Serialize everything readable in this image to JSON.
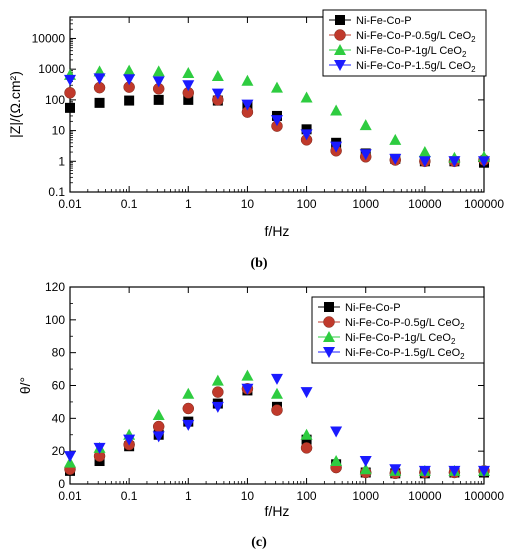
{
  "chart_data": [
    {
      "type": "scatter",
      "panel_label": "(b)",
      "xlabel": "f/Hz",
      "ylabel": "|Z|/(Ω.cm²)",
      "x_scale": "log",
      "y_scale": "log",
      "xlim": [
        0.01,
        100000
      ],
      "ylim": [
        0.1,
        50000
      ],
      "x_ticks": [
        "0.01",
        "0.1",
        "1",
        "10",
        "100",
        "1000",
        "10000",
        "100000"
      ],
      "y_ticks": [
        "0.1",
        "1",
        "10",
        "100",
        "1000",
        "10000"
      ],
      "legend_position": "top-right",
      "grid": false,
      "x": [
        0.01,
        0.0316,
        0.1,
        0.316,
        1,
        3.16,
        10,
        31.6,
        100,
        316,
        1000,
        3160,
        10000,
        31600,
        100000
      ],
      "series": [
        {
          "name": "Ni-Fe-Co-P",
          "label_parts": [
            "Ni-Fe-Co-P",
            ""
          ],
          "marker": "square",
          "color": "#000000",
          "values": [
            55,
            80,
            95,
            100,
            100,
            95,
            65,
            30,
            11,
            4,
            1.8,
            1.2,
            1.0,
            1.0,
            0.9
          ]
        },
        {
          "name": "Ni-Fe-Co-P-0.5g/L CeO2",
          "label_parts": [
            "Ni-Fe-Co-P-0.5g/L CeO",
            "2"
          ],
          "marker": "circle",
          "color": "#c0392b",
          "values": [
            170,
            250,
            260,
            230,
            170,
            100,
            40,
            14,
            5,
            2.2,
            1.4,
            1.1,
            1.0,
            1.0,
            1.1
          ]
        },
        {
          "name": "Ni-Fe-Co-P-1g/L CeO2",
          "label_parts": [
            "Ni-Fe-Co-P-1g/L CeO",
            "2"
          ],
          "marker": "triangle-up",
          "color": "#2ecc40",
          "values": [
            650,
            850,
            900,
            850,
            750,
            600,
            420,
            250,
            120,
            45,
            15,
            5,
            2,
            1.3,
            1.4
          ]
        },
        {
          "name": "Ni-Fe-Co-P-1.5g/L CeO2",
          "label_parts": [
            "Ni-Fe-Co-P-1.5g/L CeO",
            "2"
          ],
          "marker": "triangle-down",
          "color": "#1a1aff",
          "values": [
            450,
            500,
            470,
            400,
            300,
            160,
            70,
            22,
            7.5,
            3,
            1.7,
            1.2,
            1.0,
            1.0,
            1.0
          ]
        }
      ]
    },
    {
      "type": "scatter",
      "panel_label": "(c)",
      "xlabel": "f/Hz",
      "ylabel": "θ/°",
      "x_scale": "log",
      "y_scale": "linear",
      "xlim": [
        0.01,
        100000
      ],
      "ylim": [
        0,
        120
      ],
      "x_ticks": [
        "0.01",
        "0.1",
        "1",
        "10",
        "100",
        "1000",
        "10000",
        "100000"
      ],
      "y_ticks": [
        "0",
        "20",
        "40",
        "60",
        "80",
        "100",
        "120"
      ],
      "legend_position": "top-right",
      "grid": false,
      "x": [
        0.01,
        0.0316,
        0.1,
        0.316,
        1,
        3.16,
        10,
        31.6,
        100,
        316,
        1000,
        3160,
        10000,
        31600,
        100000
      ],
      "series": [
        {
          "name": "Ni-Fe-Co-P",
          "label_parts": [
            "Ni-Fe-Co-P",
            ""
          ],
          "marker": "square",
          "color": "#000000",
          "values": [
            8,
            14,
            23,
            30,
            38,
            49,
            57,
            47,
            27,
            12,
            7,
            6.5,
            6.5,
            7,
            7
          ]
        },
        {
          "name": "Ni-Fe-Co-P-0.5g/L CeO2",
          "label_parts": [
            "Ni-Fe-Co-P-0.5g/L CeO",
            "2"
          ],
          "marker": "circle",
          "color": "#c0392b",
          "values": [
            9,
            17,
            24,
            35,
            46,
            56,
            58,
            45,
            22,
            10,
            7,
            6.5,
            7,
            7,
            8
          ]
        },
        {
          "name": "Ni-Fe-Co-P-1g/L CeO2",
          "label_parts": [
            "Ni-Fe-Co-P-1g/L CeO",
            "2"
          ],
          "marker": "triangle-up",
          "color": "#2ecc40",
          "values": [
            13,
            22,
            30,
            42,
            55,
            63,
            66,
            55,
            30,
            14,
            9,
            8,
            8,
            8,
            8
          ]
        },
        {
          "name": "Ni-Fe-Co-P-1.5g/L CeO2",
          "label_parts": [
            "Ni-Fe-Co-P-1.5g/L CeO",
            "2"
          ],
          "marker": "triangle-down",
          "color": "#1a1aff",
          "values": [
            17,
            22,
            27,
            29,
            36,
            47,
            58,
            64,
            56,
            32,
            14,
            9,
            8,
            8,
            8
          ]
        }
      ]
    }
  ]
}
